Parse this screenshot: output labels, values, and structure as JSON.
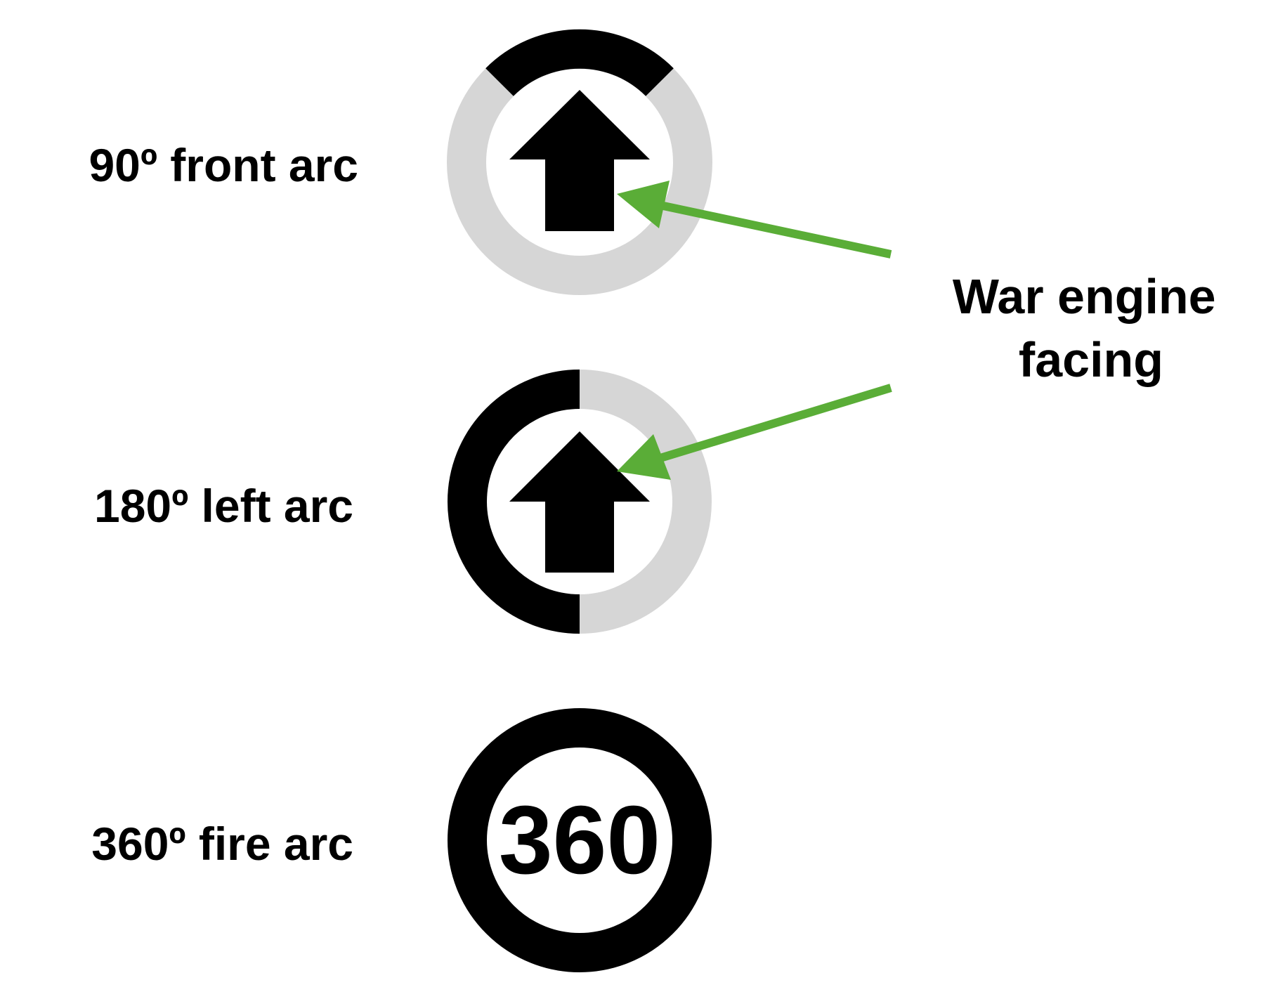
{
  "colors": {
    "background": "#ffffff",
    "arc_active": "#000000",
    "arc_inactive": "#d6d6d6",
    "arrow": "#000000",
    "pointer": "#5aad37"
  },
  "rows": [
    {
      "label": "90º front arc",
      "arc": "front-90",
      "icon": "up-arrow-icon"
    },
    {
      "label": "180º left arc",
      "arc": "left-180",
      "icon": "up-arrow-icon"
    },
    {
      "label": "360º fire arc",
      "arc": "full-360",
      "center_text": "360"
    }
  ],
  "callout": {
    "line1": "War engine",
    "line2": "facing"
  }
}
